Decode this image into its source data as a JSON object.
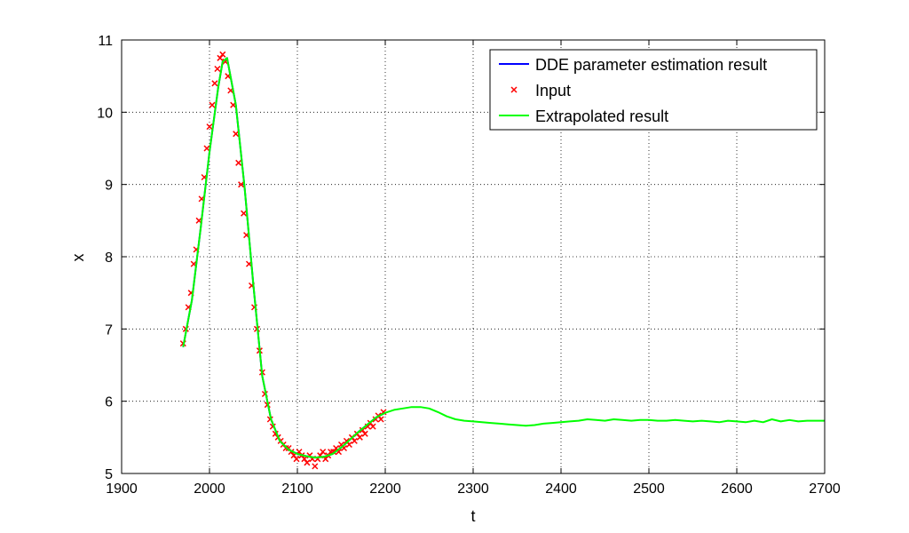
{
  "chart_data": {
    "type": "line",
    "xlabel": "t",
    "ylabel": "x",
    "xlim": [
      1900,
      2700
    ],
    "ylim": [
      5,
      11
    ],
    "xticks": [
      1900,
      2000,
      2100,
      2200,
      2300,
      2400,
      2500,
      2600,
      2700
    ],
    "yticks": [
      5,
      6,
      7,
      8,
      9,
      10,
      11
    ],
    "grid": true,
    "legend_position": "top-right",
    "series": [
      {
        "name": "DDE parameter estimation result",
        "type": "line",
        "color": "#0000ff",
        "x": [
          1970,
          1980,
          1990,
          2000,
          2010,
          2015,
          2020,
          2030,
          2040,
          2050,
          2060,
          2070,
          2080,
          2090,
          2100,
          2110,
          2120,
          2130,
          2140,
          2150,
          2160,
          2170,
          2180,
          2190,
          2200
        ],
        "y": [
          6.75,
          7.4,
          8.4,
          9.45,
          10.35,
          10.7,
          10.75,
          10.1,
          8.95,
          7.6,
          6.35,
          5.75,
          5.45,
          5.33,
          5.27,
          5.24,
          5.22,
          5.23,
          5.27,
          5.36,
          5.47,
          5.58,
          5.68,
          5.78,
          5.84
        ]
      },
      {
        "name": "Input",
        "type": "scatter",
        "color": "#ff0000",
        "x": [
          1970,
          1973,
          1976,
          1979,
          1982,
          1985,
          1988,
          1991,
          1994,
          1997,
          2000,
          2003,
          2006,
          2009,
          2012,
          2015,
          2018,
          2021,
          2024,
          2027,
          2030,
          2033,
          2036,
          2039,
          2042,
          2045,
          2048,
          2051,
          2054,
          2057,
          2060,
          2063,
          2066,
          2069,
          2072,
          2075,
          2078,
          2081,
          2084,
          2087,
          2090,
          2093,
          2096,
          2099,
          2102,
          2105,
          2108,
          2111,
          2114,
          2117,
          2120,
          2123,
          2126,
          2129,
          2132,
          2135,
          2138,
          2141,
          2144,
          2147,
          2150,
          2153,
          2156,
          2159,
          2162,
          2165,
          2168,
          2171,
          2174,
          2177,
          2180,
          2183,
          2186,
          2189,
          2192,
          2195,
          2198
        ],
        "y": [
          6.8,
          7.0,
          7.3,
          7.5,
          7.9,
          8.1,
          8.5,
          8.8,
          9.1,
          9.5,
          9.8,
          10.1,
          10.4,
          10.6,
          10.75,
          10.8,
          10.7,
          10.5,
          10.3,
          10.1,
          9.7,
          9.3,
          9.0,
          8.6,
          8.3,
          7.9,
          7.6,
          7.3,
          7.0,
          6.7,
          6.4,
          6.1,
          5.95,
          5.75,
          5.65,
          5.55,
          5.5,
          5.45,
          5.4,
          5.35,
          5.35,
          5.3,
          5.25,
          5.2,
          5.3,
          5.25,
          5.2,
          5.15,
          5.25,
          5.2,
          5.1,
          5.2,
          5.25,
          5.3,
          5.2,
          5.25,
          5.3,
          5.3,
          5.35,
          5.3,
          5.4,
          5.35,
          5.45,
          5.4,
          5.5,
          5.45,
          5.55,
          5.5,
          5.6,
          5.55,
          5.65,
          5.7,
          5.65,
          5.75,
          5.8,
          5.75,
          5.85
        ]
      },
      {
        "name": "Extrapolated result",
        "type": "line",
        "color": "#00ff00",
        "x": [
          1970,
          1980,
          1990,
          2000,
          2010,
          2015,
          2020,
          2030,
          2040,
          2050,
          2060,
          2070,
          2080,
          2090,
          2100,
          2110,
          2120,
          2130,
          2140,
          2150,
          2160,
          2170,
          2180,
          2190,
          2200,
          2210,
          2220,
          2230,
          2240,
          2250,
          2260,
          2270,
          2280,
          2290,
          2300,
          2310,
          2320,
          2330,
          2340,
          2350,
          2360,
          2370,
          2380,
          2390,
          2400,
          2410,
          2420,
          2430,
          2440,
          2450,
          2460,
          2470,
          2480,
          2490,
          2500,
          2510,
          2520,
          2530,
          2540,
          2550,
          2560,
          2570,
          2580,
          2590,
          2600,
          2610,
          2620,
          2630,
          2640,
          2650,
          2660,
          2670,
          2680,
          2690,
          2700
        ],
        "y": [
          6.75,
          7.4,
          8.4,
          9.45,
          10.35,
          10.7,
          10.75,
          10.1,
          8.95,
          7.6,
          6.35,
          5.75,
          5.45,
          5.33,
          5.27,
          5.24,
          5.22,
          5.23,
          5.27,
          5.36,
          5.47,
          5.58,
          5.68,
          5.78,
          5.84,
          5.88,
          5.9,
          5.92,
          5.92,
          5.9,
          5.85,
          5.79,
          5.75,
          5.73,
          5.72,
          5.71,
          5.7,
          5.69,
          5.68,
          5.67,
          5.66,
          5.67,
          5.69,
          5.7,
          5.71,
          5.72,
          5.73,
          5.75,
          5.74,
          5.73,
          5.75,
          5.74,
          5.73,
          5.74,
          5.74,
          5.73,
          5.73,
          5.74,
          5.73,
          5.72,
          5.73,
          5.72,
          5.71,
          5.73,
          5.72,
          5.71,
          5.73,
          5.71,
          5.75,
          5.72,
          5.74,
          5.72,
          5.73,
          5.73,
          5.73
        ]
      }
    ]
  }
}
